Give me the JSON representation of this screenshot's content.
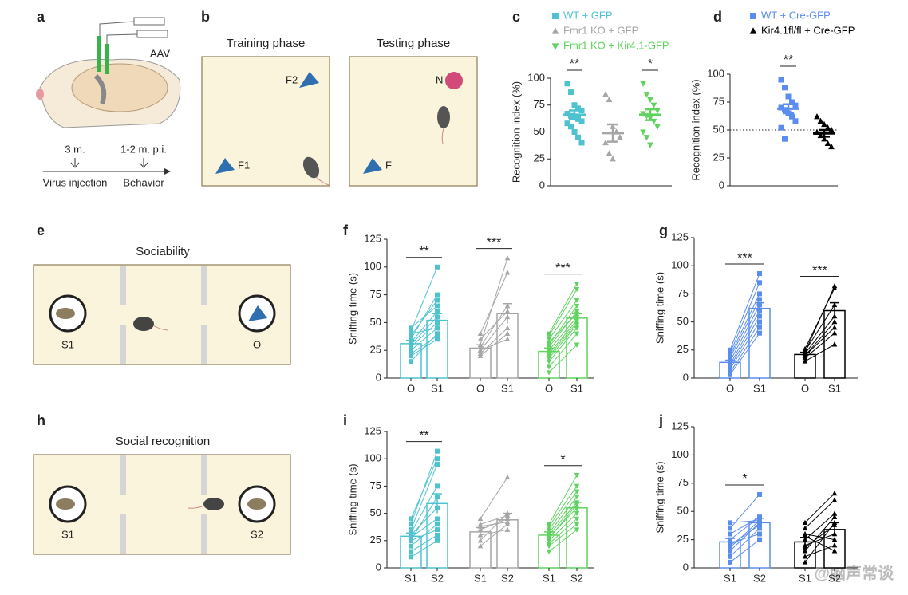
{
  "panel_labels": [
    "a",
    "b",
    "c",
    "d",
    "e",
    "f",
    "g",
    "h",
    "i",
    "j"
  ],
  "diagrams": {
    "a": {
      "virus": "AAV",
      "time_1": "3 m.",
      "time_2": "1-2 m. p.i.",
      "step_1": "Virus injection",
      "step_2": "Behavior"
    },
    "b": {
      "phase_1": "Training phase",
      "phase_2": "Testing phase",
      "object_f2": "F2",
      "object_f1": "F1",
      "object_n": "N",
      "object_f": "F"
    },
    "e": {
      "title": "Sociability",
      "left": "S1",
      "right": "O"
    },
    "h": {
      "title": "Social recognition",
      "left": "S1",
      "right": "S2"
    }
  },
  "watermark": "@脑声常谈",
  "chart_data": [
    {
      "type": "dot",
      "ylabel": "Recognition index (%)",
      "ylim": [
        0,
        100
      ],
      "yticks": [
        0,
        25,
        50,
        75,
        100
      ],
      "reference_line": 50,
      "series": [
        {
          "name": "WT + GFP",
          "color": "#4ec3cf",
          "marker": "square",
          "values": [
            95,
            87,
            75,
            72,
            70,
            67,
            65,
            64,
            62,
            60,
            58,
            55,
            50,
            45,
            40
          ],
          "mean": 66,
          "sem": 4,
          "significance": "**"
        },
        {
          "name": "Fmr1 KO + GFP",
          "color": "#a6a6a6",
          "marker": "triangle",
          "values": [
            85,
            80,
            55,
            50,
            45,
            40,
            30,
            25
          ],
          "mean": 49,
          "sem": 8
        },
        {
          "name": "Fmr1 KO + Kir4.1-GFP",
          "color": "#5fd35f",
          "marker": "triangle-down",
          "values": [
            95,
            85,
            80,
            75,
            70,
            67,
            65,
            63,
            60,
            55,
            50,
            45,
            38
          ],
          "mean": 66,
          "sem": 5,
          "significance": "*"
        }
      ]
    },
    {
      "type": "dot",
      "ylabel": "Recognition index (%)",
      "ylim": [
        0,
        100
      ],
      "yticks": [
        0,
        25,
        50,
        75,
        100
      ],
      "reference_line": 50,
      "series": [
        {
          "name": "WT + Cre-GFP",
          "color": "#5b8def",
          "marker": "square",
          "values": [
            95,
            88,
            80,
            75,
            72,
            70,
            68,
            65,
            62,
            58,
            52,
            42
          ],
          "mean": 69,
          "sem": 4,
          "significance": "**"
        },
        {
          "name": "Kir4.1fl/fl + Cre-GFP",
          "color": "#000000",
          "marker": "triangle",
          "values": [
            62,
            58,
            55,
            52,
            50,
            48,
            45,
            42,
            38,
            35
          ],
          "mean": 47,
          "sem": 3
        }
      ]
    },
    {
      "type": "paired",
      "ylabel": "Sniffing time (s)",
      "ylim": [
        0,
        125
      ],
      "yticks": [
        0,
        25,
        50,
        75,
        100,
        125
      ],
      "groups": [
        {
          "color": "#4ec3cf",
          "marker": "square",
          "categories": [
            "O",
            "S1"
          ],
          "pairs": [
            [
              15,
              40
            ],
            [
              20,
              35
            ],
            [
              25,
              45
            ],
            [
              28,
              50
            ],
            [
              30,
              55
            ],
            [
              32,
              60
            ],
            [
              35,
              75
            ],
            [
              38,
              70
            ],
            [
              40,
              45
            ],
            [
              42,
              100
            ],
            [
              45,
              65
            ],
            [
              22,
              38
            ]
          ],
          "means": [
            31,
            52
          ],
          "sem": [
            3,
            6
          ],
          "significance": "**"
        },
        {
          "color": "#a6a6a6",
          "marker": "triangle",
          "categories": [
            "O",
            "S1"
          ],
          "pairs": [
            [
              20,
              40
            ],
            [
              22,
              45
            ],
            [
              25,
              35
            ],
            [
              28,
              65
            ],
            [
              30,
              108
            ],
            [
              35,
              60
            ],
            [
              40,
              95
            ],
            [
              25,
              55
            ]
          ],
          "means": [
            27,
            58
          ],
          "sem": [
            3,
            9
          ],
          "significance": "***"
        },
        {
          "color": "#5fd35f",
          "marker": "triangle-down",
          "categories": [
            "O",
            "S1"
          ],
          "pairs": [
            [
              5,
              30
            ],
            [
              10,
              40
            ],
            [
              15,
              45
            ],
            [
              20,
              50
            ],
            [
              25,
              55
            ],
            [
              28,
              60
            ],
            [
              30,
              65
            ],
            [
              35,
              70
            ],
            [
              38,
              80
            ],
            [
              40,
              85
            ],
            [
              18,
              48
            ],
            [
              22,
              52
            ],
            [
              32,
              58
            ]
          ],
          "means": [
            24,
            54
          ],
          "sem": [
            3,
            4
          ],
          "significance": "***"
        }
      ]
    },
    {
      "type": "paired",
      "ylabel": "Sniffing time (s)",
      "ylim": [
        0,
        125
      ],
      "yticks": [
        0,
        25,
        50,
        75,
        100,
        125
      ],
      "groups": [
        {
          "color": "#5b8def",
          "marker": "square",
          "categories": [
            "O",
            "S1"
          ],
          "pairs": [
            [
              3,
              40
            ],
            [
              5,
              45
            ],
            [
              8,
              50
            ],
            [
              10,
              55
            ],
            [
              12,
              60
            ],
            [
              15,
              65
            ],
            [
              18,
              70
            ],
            [
              20,
              75
            ],
            [
              22,
              85
            ],
            [
              25,
              93
            ]
          ],
          "means": [
            14,
            62
          ],
          "sem": [
            2,
            5
          ],
          "significance": "***"
        },
        {
          "color": "#000000",
          "marker": "triangle",
          "categories": [
            "O",
            "S1"
          ],
          "pairs": [
            [
              15,
              30
            ],
            [
              18,
              40
            ],
            [
              20,
              50
            ],
            [
              22,
              55
            ],
            [
              24,
              65
            ],
            [
              26,
              80
            ],
            [
              20,
              45
            ],
            [
              23,
              82
            ]
          ],
          "means": [
            21,
            60
          ],
          "sem": [
            2,
            7
          ],
          "significance": "***"
        }
      ]
    },
    {
      "type": "paired",
      "ylabel": "Sniffing time (s)",
      "ylim": [
        0,
        125
      ],
      "yticks": [
        0,
        25,
        50,
        75,
        100,
        125
      ],
      "groups": [
        {
          "color": "#4ec3cf",
          "marker": "square",
          "categories": [
            "S1",
            "S2"
          ],
          "pairs": [
            [
              10,
              25
            ],
            [
              15,
              30
            ],
            [
              25,
              35
            ],
            [
              28,
              45
            ],
            [
              30,
              55
            ],
            [
              32,
              75
            ],
            [
              35,
              95
            ],
            [
              40,
              107
            ],
            [
              45,
              100
            ],
            [
              25,
              65
            ],
            [
              20,
              40
            ]
          ],
          "means": [
            29,
            59
          ],
          "sem": [
            3,
            9
          ],
          "significance": "**"
        },
        {
          "color": "#a6a6a6",
          "marker": "triangle",
          "categories": [
            "S1",
            "S2"
          ],
          "pairs": [
            [
              20,
              40
            ],
            [
              25,
              50
            ],
            [
              30,
              35
            ],
            [
              35,
              45
            ],
            [
              40,
              48
            ],
            [
              45,
              83
            ],
            [
              38,
              42
            ]
          ],
          "means": [
            33,
            44
          ],
          "sem": [
            4,
            6
          ]
        },
        {
          "color": "#5fd35f",
          "marker": "triangle-down",
          "categories": [
            "S1",
            "S2"
          ],
          "pairs": [
            [
              15,
              35
            ],
            [
              20,
              40
            ],
            [
              25,
              50
            ],
            [
              28,
              55
            ],
            [
              30,
              60
            ],
            [
              32,
              65
            ],
            [
              35,
              70
            ],
            [
              38,
              75
            ],
            [
              40,
              85
            ],
            [
              22,
              45
            ],
            [
              27,
              58
            ]
          ],
          "means": [
            30,
            55
          ],
          "sem": [
            3,
            5
          ],
          "significance": "*"
        }
      ]
    },
    {
      "type": "paired",
      "ylabel": "Sniffing time (s)",
      "ylim": [
        0,
        125
      ],
      "yticks": [
        0,
        25,
        50,
        75,
        100,
        125
      ],
      "groups": [
        {
          "color": "#5b8def",
          "marker": "square",
          "categories": [
            "S1",
            "S2"
          ],
          "pairs": [
            [
              5,
              25
            ],
            [
              10,
              35
            ],
            [
              15,
              40
            ],
            [
              20,
              38
            ],
            [
              25,
              45
            ],
            [
              30,
              45
            ],
            [
              35,
              65
            ],
            [
              40,
              42
            ],
            [
              22,
              30
            ],
            [
              18,
              42
            ]
          ],
          "means": [
            23,
            40
          ],
          "sem": [
            3,
            4
          ],
          "significance": "*"
        },
        {
          "color": "#000000",
          "marker": "triangle",
          "categories": [
            "S1",
            "S2"
          ],
          "pairs": [
            [
              5,
              40
            ],
            [
              10,
              20
            ],
            [
              15,
              45
            ],
            [
              20,
              30
            ],
            [
              25,
              48
            ],
            [
              30,
              25
            ],
            [
              35,
              60
            ],
            [
              40,
              66
            ],
            [
              28,
              15
            ],
            [
              18,
              38
            ]
          ],
          "means": [
            23,
            34
          ],
          "sem": [
            4,
            6
          ]
        }
      ]
    }
  ]
}
